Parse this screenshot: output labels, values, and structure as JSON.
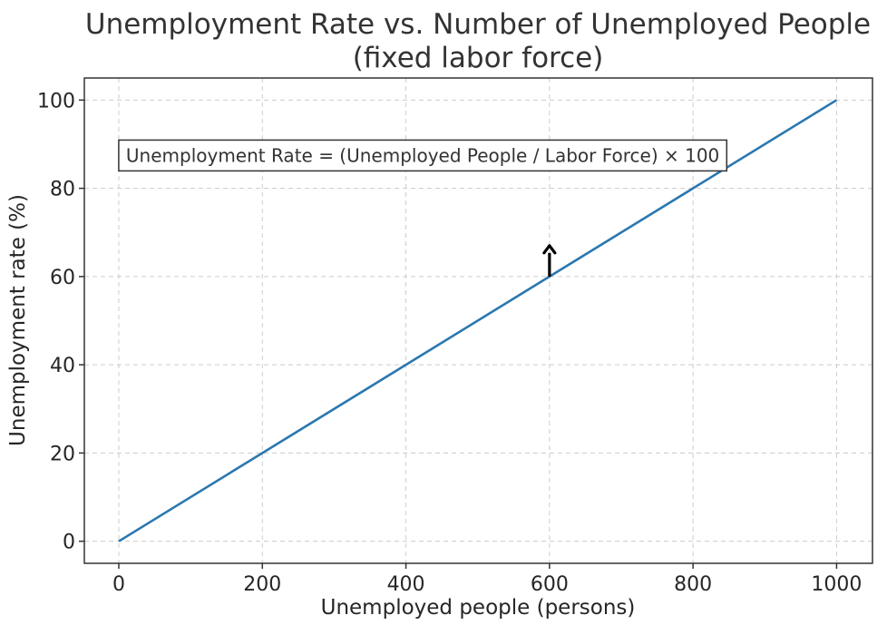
{
  "chart_data": {
    "type": "line",
    "title_lines": [
      "Unemployment Rate vs. Number of Unemployed People",
      "(fixed labor force)"
    ],
    "xlabel": "Unemployed people (persons)",
    "ylabel": "Unemployment rate (%)",
    "xlim": [
      -48,
      1050
    ],
    "ylim": [
      -5,
      105
    ],
    "xticks": [
      0,
      200,
      400,
      600,
      800,
      1000
    ],
    "yticks": [
      0,
      20,
      40,
      60,
      80,
      100
    ],
    "grid": true,
    "series": [
      {
        "x": [
          0,
          1000
        ],
        "y": [
          0,
          100
        ],
        "color": "#2a77b0"
      }
    ],
    "annotations": [
      {
        "type": "text-box",
        "text": "Unemployment Rate = (Unemployed People / Labor Force) × 100",
        "x": 10,
        "y": 86
      },
      {
        "type": "arrow",
        "x": 600,
        "y_from": 60,
        "y_to": 67,
        "direction": "up",
        "color": "#000000"
      }
    ]
  }
}
